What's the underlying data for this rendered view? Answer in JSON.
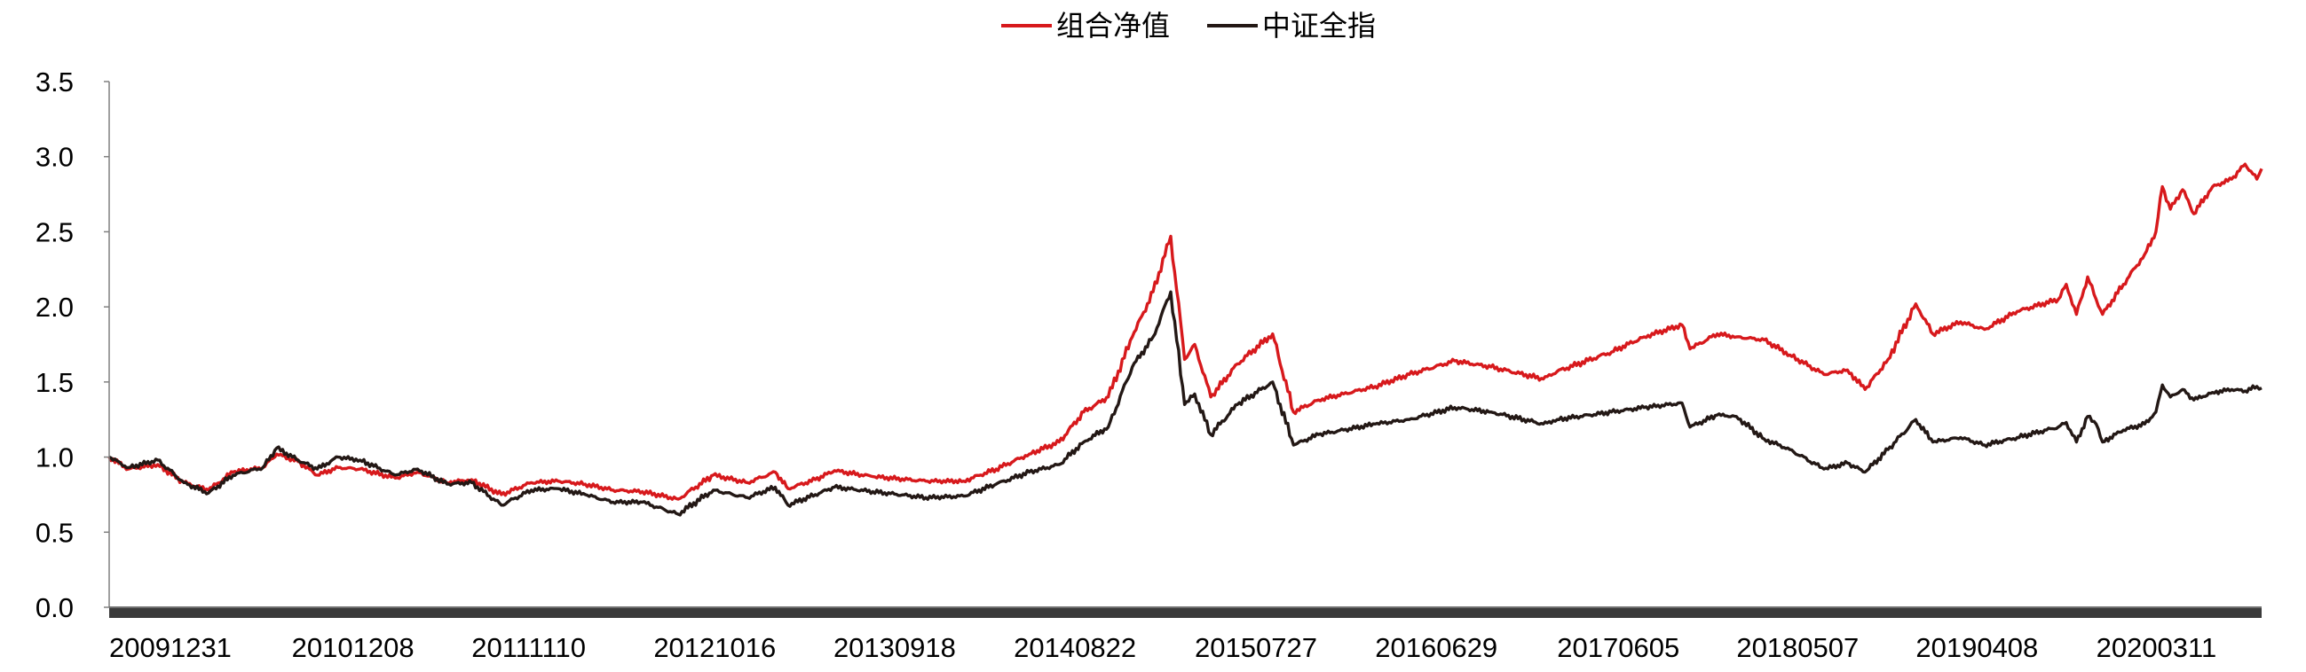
{
  "chart_data": {
    "type": "line",
    "title": "",
    "xlabel": "",
    "ylabel": "",
    "ylim": [
      0,
      3.5
    ],
    "yticks": [
      "0.0",
      "0.5",
      "1.0",
      "1.5",
      "2.0",
      "2.5",
      "3.0",
      "3.5"
    ],
    "xrange": [
      "2009-12-31",
      "2021-01-15"
    ],
    "xticks": [
      {
        "date": "2009-12-31",
        "label": "20091231"
      },
      {
        "date": "2010-12-08",
        "label": "20101208"
      },
      {
        "date": "2011-11-10",
        "label": "20111110"
      },
      {
        "date": "2012-10-16",
        "label": "20121016"
      },
      {
        "date": "2013-09-18",
        "label": "20130918"
      },
      {
        "date": "2014-08-22",
        "label": "20140822"
      },
      {
        "date": "2015-07-27",
        "label": "20150727"
      },
      {
        "date": "2016-06-29",
        "label": "20160629"
      },
      {
        "date": "2017-06-05",
        "label": "20170605"
      },
      {
        "date": "2018-05-07",
        "label": "20180507"
      },
      {
        "date": "2019-04-08",
        "label": "20190408"
      },
      {
        "date": "2020-03-11",
        "label": "20200311"
      }
    ],
    "legend": {
      "position": "top-center"
    },
    "grid": false,
    "series": [
      {
        "name": "组合净值",
        "color": "#d7191c",
        "points": [
          [
            "2009-12-31",
            1.0
          ],
          [
            "2010-02-05",
            0.92
          ],
          [
            "2010-04-01",
            0.95
          ],
          [
            "2010-05-20",
            0.83
          ],
          [
            "2010-07-05",
            0.78
          ],
          [
            "2010-08-20",
            0.9
          ],
          [
            "2010-10-15",
            0.93
          ],
          [
            "2010-11-10",
            1.02
          ],
          [
            "2010-12-20",
            0.97
          ],
          [
            "2011-01-25",
            0.88
          ],
          [
            "2011-03-05",
            0.93
          ],
          [
            "2011-04-15",
            0.92
          ],
          [
            "2011-06-20",
            0.86
          ],
          [
            "2011-08-01",
            0.9
          ],
          [
            "2011-09-25",
            0.83
          ],
          [
            "2011-11-10",
            0.85
          ],
          [
            "2012-01-05",
            0.75
          ],
          [
            "2012-03-01",
            0.83
          ],
          [
            "2012-04-20",
            0.84
          ],
          [
            "2012-06-10",
            0.82
          ],
          [
            "2012-08-01",
            0.78
          ],
          [
            "2012-09-25",
            0.77
          ],
          [
            "2012-12-01",
            0.72
          ],
          [
            "2013-02-05",
            0.88
          ],
          [
            "2013-04-10",
            0.83
          ],
          [
            "2013-06-01",
            0.9
          ],
          [
            "2013-06-25",
            0.79
          ],
          [
            "2013-08-15",
            0.85
          ],
          [
            "2013-09-20",
            0.91
          ],
          [
            "2013-12-01",
            0.87
          ],
          [
            "2014-03-10",
            0.84
          ],
          [
            "2014-05-20",
            0.84
          ],
          [
            "2014-07-20",
            0.92
          ],
          [
            "2014-09-20",
            1.02
          ],
          [
            "2014-11-15",
            1.1
          ],
          [
            "2014-12-31",
            1.3
          ],
          [
            "2015-02-15",
            1.4
          ],
          [
            "2015-04-01",
            1.8
          ],
          [
            "2015-05-10",
            2.1
          ],
          [
            "2015-06-12",
            2.47
          ],
          [
            "2015-07-08",
            1.65
          ],
          [
            "2015-07-27",
            1.75
          ],
          [
            "2015-08-26",
            1.4
          ],
          [
            "2015-10-15",
            1.62
          ],
          [
            "2015-12-20",
            1.82
          ],
          [
            "2016-01-28",
            1.3
          ],
          [
            "2016-03-15",
            1.38
          ],
          [
            "2016-05-01",
            1.42
          ],
          [
            "2016-06-29",
            1.47
          ],
          [
            "2016-09-01",
            1.55
          ],
          [
            "2016-11-25",
            1.64
          ],
          [
            "2017-02-01",
            1.6
          ],
          [
            "2017-05-10",
            1.52
          ],
          [
            "2017-06-05",
            1.57
          ],
          [
            "2017-09-15",
            1.7
          ],
          [
            "2017-11-15",
            1.8
          ],
          [
            "2018-01-25",
            1.88
          ],
          [
            "2018-02-09",
            1.72
          ],
          [
            "2018-04-01",
            1.82
          ],
          [
            "2018-05-07",
            1.8
          ],
          [
            "2018-06-28",
            1.78
          ],
          [
            "2018-08-15",
            1.68
          ],
          [
            "2018-10-18",
            1.55
          ],
          [
            "2018-12-01",
            1.58
          ],
          [
            "2019-01-03",
            1.45
          ],
          [
            "2019-02-15",
            1.65
          ],
          [
            "2019-04-08",
            2.02
          ],
          [
            "2019-05-10",
            1.82
          ],
          [
            "2019-07-01",
            1.9
          ],
          [
            "2019-08-15",
            1.85
          ],
          [
            "2019-10-15",
            1.97
          ],
          [
            "2019-12-31",
            2.05
          ],
          [
            "2020-01-15",
            2.15
          ],
          [
            "2020-02-03",
            1.95
          ],
          [
            "2020-02-24",
            2.2
          ],
          [
            "2020-03-11",
            2.05
          ],
          [
            "2020-03-23",
            1.95
          ],
          [
            "2020-05-01",
            2.15
          ],
          [
            "2020-06-10",
            2.35
          ],
          [
            "2020-07-01",
            2.5
          ],
          [
            "2020-07-13",
            2.8
          ],
          [
            "2020-07-28",
            2.65
          ],
          [
            "2020-08-20",
            2.78
          ],
          [
            "2020-09-10",
            2.62
          ],
          [
            "2020-10-15",
            2.8
          ],
          [
            "2020-11-20",
            2.85
          ],
          [
            "2020-12-15",
            2.95
          ],
          [
            "2021-01-06",
            2.85
          ],
          [
            "2021-01-15",
            2.92
          ]
        ]
      },
      {
        "name": "中证全指",
        "color": "#231815",
        "points": [
          [
            "2009-12-31",
            1.0
          ],
          [
            "2010-02-05",
            0.93
          ],
          [
            "2010-04-01",
            0.98
          ],
          [
            "2010-05-20",
            0.83
          ],
          [
            "2010-07-05",
            0.76
          ],
          [
            "2010-08-20",
            0.88
          ],
          [
            "2010-10-15",
            0.93
          ],
          [
            "2010-11-10",
            1.06
          ],
          [
            "2010-12-20",
            0.98
          ],
          [
            "2011-01-25",
            0.92
          ],
          [
            "2011-03-05",
            1.0
          ],
          [
            "2011-04-15",
            0.98
          ],
          [
            "2011-06-20",
            0.88
          ],
          [
            "2011-08-01",
            0.92
          ],
          [
            "2011-09-25",
            0.82
          ],
          [
            "2011-11-10",
            0.83
          ],
          [
            "2012-01-05",
            0.68
          ],
          [
            "2012-03-01",
            0.78
          ],
          [
            "2012-04-20",
            0.79
          ],
          [
            "2012-06-10",
            0.75
          ],
          [
            "2012-08-01",
            0.7
          ],
          [
            "2012-09-25",
            0.7
          ],
          [
            "2012-12-01",
            0.62
          ],
          [
            "2013-02-05",
            0.78
          ],
          [
            "2013-04-10",
            0.73
          ],
          [
            "2013-06-01",
            0.8
          ],
          [
            "2013-06-25",
            0.68
          ],
          [
            "2013-08-15",
            0.75
          ],
          [
            "2013-09-20",
            0.8
          ],
          [
            "2013-12-01",
            0.77
          ],
          [
            "2014-03-10",
            0.73
          ],
          [
            "2014-05-20",
            0.74
          ],
          [
            "2014-07-20",
            0.82
          ],
          [
            "2014-09-20",
            0.9
          ],
          [
            "2014-11-15",
            0.95
          ],
          [
            "2014-12-31",
            1.1
          ],
          [
            "2015-02-15",
            1.2
          ],
          [
            "2015-04-01",
            1.6
          ],
          [
            "2015-05-10",
            1.8
          ],
          [
            "2015-06-12",
            2.1
          ],
          [
            "2015-07-08",
            1.35
          ],
          [
            "2015-07-27",
            1.42
          ],
          [
            "2015-08-26",
            1.15
          ],
          [
            "2015-10-15",
            1.35
          ],
          [
            "2015-12-20",
            1.5
          ],
          [
            "2016-01-28",
            1.08
          ],
          [
            "2016-03-15",
            1.15
          ],
          [
            "2016-05-01",
            1.18
          ],
          [
            "2016-06-29",
            1.22
          ],
          [
            "2016-09-01",
            1.25
          ],
          [
            "2016-11-25",
            1.33
          ],
          [
            "2017-02-01",
            1.3
          ],
          [
            "2017-05-10",
            1.22
          ],
          [
            "2017-06-05",
            1.25
          ],
          [
            "2017-09-15",
            1.3
          ],
          [
            "2017-11-15",
            1.33
          ],
          [
            "2018-01-25",
            1.36
          ],
          [
            "2018-02-09",
            1.2
          ],
          [
            "2018-04-01",
            1.28
          ],
          [
            "2018-05-07",
            1.27
          ],
          [
            "2018-06-28",
            1.12
          ],
          [
            "2018-08-15",
            1.05
          ],
          [
            "2018-10-18",
            0.92
          ],
          [
            "2018-12-01",
            0.96
          ],
          [
            "2019-01-03",
            0.9
          ],
          [
            "2019-02-15",
            1.05
          ],
          [
            "2019-04-08",
            1.25
          ],
          [
            "2019-05-10",
            1.1
          ],
          [
            "2019-07-01",
            1.13
          ],
          [
            "2019-08-15",
            1.08
          ],
          [
            "2019-10-15",
            1.13
          ],
          [
            "2019-12-31",
            1.2
          ],
          [
            "2020-01-15",
            1.23
          ],
          [
            "2020-02-03",
            1.1
          ],
          [
            "2020-02-24",
            1.27
          ],
          [
            "2020-03-11",
            1.22
          ],
          [
            "2020-03-23",
            1.1
          ],
          [
            "2020-05-01",
            1.18
          ],
          [
            "2020-06-10",
            1.22
          ],
          [
            "2020-07-01",
            1.3
          ],
          [
            "2020-07-13",
            1.48
          ],
          [
            "2020-07-28",
            1.4
          ],
          [
            "2020-08-20",
            1.45
          ],
          [
            "2020-09-10",
            1.38
          ],
          [
            "2020-10-15",
            1.43
          ],
          [
            "2020-11-20",
            1.45
          ],
          [
            "2020-12-15",
            1.44
          ],
          [
            "2021-01-06",
            1.47
          ],
          [
            "2021-01-15",
            1.46
          ]
        ]
      }
    ]
  }
}
